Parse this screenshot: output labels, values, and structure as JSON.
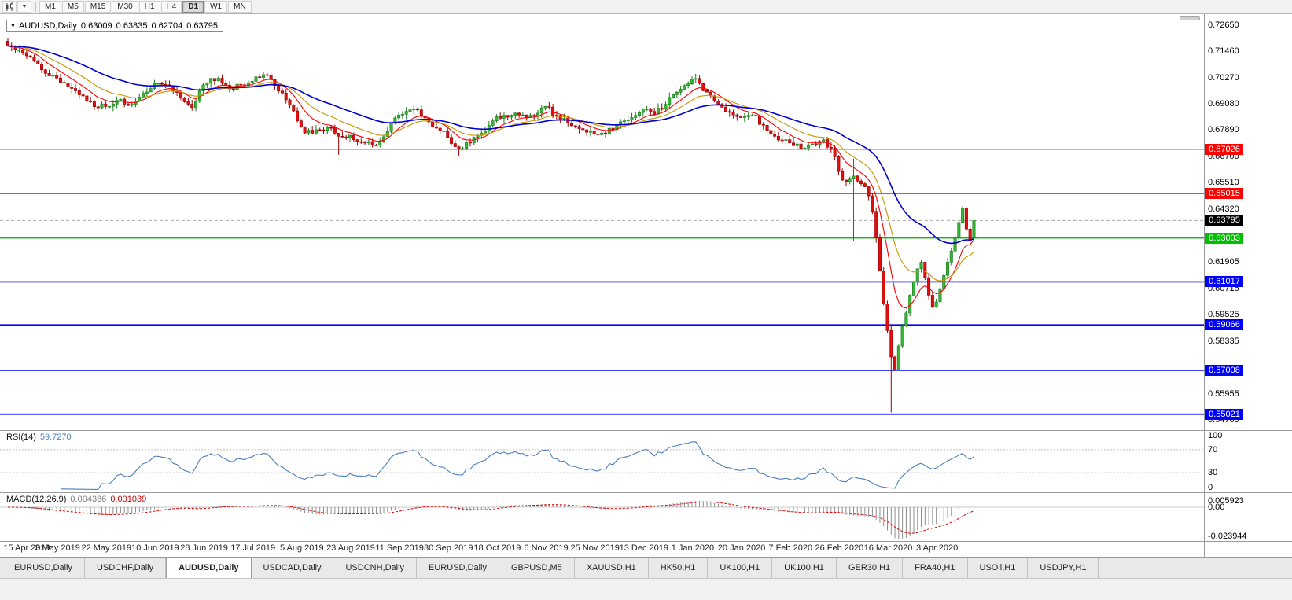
{
  "toolbar": {
    "timeframes": [
      "M1",
      "M5",
      "M15",
      "M30",
      "H1",
      "H4",
      "D1",
      "W1",
      "MN"
    ],
    "active_timeframe": "D1"
  },
  "title": {
    "symbol": "AUDUSD,Daily",
    "open": "0.63009",
    "high": "0.63835",
    "low": "0.62704",
    "close": "0.63795"
  },
  "price_axis": {
    "ticks": [
      "0.72650",
      "0.71460",
      "0.70270",
      "0.69080",
      "0.67890",
      "0.66700",
      "0.65510",
      "0.64320",
      "0.61905",
      "0.60715",
      "0.59525",
      "0.58335",
      "0.55955",
      "0.54765"
    ]
  },
  "horizontal_lines": [
    {
      "price": 0.67026,
      "label": "0.67026",
      "color": "#FF0000",
      "width": 1.2
    },
    {
      "price": 0.65015,
      "label": "0.65015",
      "color": "#FF0000",
      "width": 1.2
    },
    {
      "price": 0.63003,
      "label": "0.63003",
      "color": "#00BE00",
      "width": 1.4
    },
    {
      "price": 0.61017,
      "label": "0.61017",
      "color": "#0000FF",
      "width": 1.6
    },
    {
      "price": 0.59066,
      "label": "0.59066",
      "color": "#0000FF",
      "width": 1.6
    },
    {
      "price": 0.57008,
      "label": "0.57008",
      "color": "#0000FF",
      "width": 1.6
    },
    {
      "price": 0.55021,
      "label": "0.55021",
      "color": "#0000FF",
      "width": 1.8
    }
  ],
  "current_price": {
    "label": "0.63795",
    "value": 0.63795,
    "bg": "#000000"
  },
  "date_axis": [
    "15 Apr 2019",
    "3 May 2019",
    "22 May 2019",
    "10 Jun 2019",
    "28 Jun 2019",
    "17 Jul 2019",
    "5 Aug 2019",
    "23 Aug 2019",
    "11 Sep 2019",
    "30 Sep 2019",
    "18 Oct 2019",
    "6 Nov 2019",
    "25 Nov 2019",
    "13 Dec 2019",
    "1 Jan 2020",
    "20 Jan 2020",
    "7 Feb 2020",
    "26 Feb 2020",
    "16 Mar 2020",
    "3 Apr 2020"
  ],
  "rsi": {
    "name": "RSI(14)",
    "value": "59.7270",
    "levels": [
      70,
      30
    ],
    "axis_labels": [
      100,
      70,
      30,
      0
    ],
    "line_color": "#4a7ebb"
  },
  "macd": {
    "name": "MACD(12,26,9)",
    "main_value": "0.004386",
    "signal_value": "0.001039",
    "axis_top_label": "0.005923",
    "axis_zero_label": "0.00",
    "axis_bottom_label": "-0.023944",
    "histogram_color": "#8c8c8c",
    "signal_color": "#e00000"
  },
  "tabs": {
    "items": [
      "EURUSD,Daily",
      "USDCHF,Daily",
      "AUDUSD,Daily",
      "USDCAD,Daily",
      "USDCNH,Daily",
      "EURUSD,Daily",
      "GBPUSD,M5",
      "XAUUSD,H1",
      "HK50,H1",
      "UK100,H1",
      "UK100,H1",
      "GER30,H1",
      "FRA40,H1",
      "USOil,H1",
      "USDJPY,H1"
    ],
    "active_index": 2
  },
  "chart_data": {
    "type": "candlestick",
    "symbol": "AUDUSD",
    "timeframe": "Daily",
    "x_range": [
      "15 Apr 2019",
      "17 Apr 2020"
    ],
    "y_range": [
      0.543,
      0.73
    ],
    "candle_count": 258,
    "last_candle_ohlc": [
      0.63009,
      0.63835,
      0.62704,
      0.63795
    ],
    "up_color": "#33B833",
    "down_color": "#E01010",
    "up_stroke": "#1E7A1E",
    "down_stroke": "#990000",
    "price_path_anchors": [
      [
        0,
        0.717
      ],
      [
        3,
        0.7152
      ],
      [
        6,
        0.712
      ],
      [
        10,
        0.7046
      ],
      [
        13,
        0.7025
      ],
      [
        16,
        0.6985
      ],
      [
        20,
        0.6944
      ],
      [
        24,
        0.689
      ],
      [
        26,
        0.6896
      ],
      [
        29,
        0.6924
      ],
      [
        32,
        0.6901
      ],
      [
        36,
        0.6956
      ],
      [
        39,
        0.7
      ],
      [
        42,
        0.6994
      ],
      [
        46,
        0.6934
      ],
      [
        49,
        0.6891
      ],
      [
        52,
        0.6994
      ],
      [
        56,
        0.7024
      ],
      [
        59,
        0.6976
      ],
      [
        62,
        0.6994
      ],
      [
        65,
        0.701
      ],
      [
        68,
        0.704
      ],
      [
        71,
        0.6991
      ],
      [
        74,
        0.6926
      ],
      [
        77,
        0.6831
      ],
      [
        79,
        0.6776
      ],
      [
        82,
        0.6791
      ],
      [
        85,
        0.6801
      ],
      [
        88,
        0.6761
      ],
      [
        91,
        0.6766
      ],
      [
        94,
        0.6736
      ],
      [
        97,
        0.6721
      ],
      [
        100,
        0.6759
      ],
      [
        103,
        0.6844
      ],
      [
        106,
        0.6874
      ],
      [
        109,
        0.6881
      ],
      [
        112,
        0.6826
      ],
      [
        115,
        0.6786
      ],
      [
        117,
        0.6756
      ],
      [
        120,
        0.6706
      ],
      [
        123,
        0.6731
      ],
      [
        126,
        0.6776
      ],
      [
        129,
        0.6831
      ],
      [
        132,
        0.6856
      ],
      [
        135,
        0.6866
      ],
      [
        138,
        0.6846
      ],
      [
        141,
        0.6866
      ],
      [
        143,
        0.6896
      ],
      [
        146,
        0.6856
      ],
      [
        149,
        0.6821
      ],
      [
        152,
        0.6796
      ],
      [
        155,
        0.6786
      ],
      [
        158,
        0.6776
      ],
      [
        161,
        0.6791
      ],
      [
        164,
        0.6831
      ],
      [
        167,
        0.6856
      ],
      [
        169,
        0.6881
      ],
      [
        172,
        0.6861
      ],
      [
        175,
        0.6906
      ],
      [
        178,
        0.6961
      ],
      [
        180,
        0.6991
      ],
      [
        182,
        0.7021
      ],
      [
        184,
        0.7001
      ],
      [
        186,
        0.6961
      ],
      [
        189,
        0.6906
      ],
      [
        192,
        0.6871
      ],
      [
        195,
        0.6846
      ],
      [
        198,
        0.6856
      ],
      [
        201,
        0.6811
      ],
      [
        204,
        0.6761
      ],
      [
        208,
        0.6731
      ],
      [
        211,
        0.6706
      ],
      [
        214,
        0.6726
      ],
      [
        217,
        0.6746
      ],
      [
        219,
        0.6706
      ],
      [
        221,
        0.6601
      ],
      [
        223,
        0.6556
      ],
      [
        225,
        0.6581
      ],
      [
        227,
        0.6546
      ],
      [
        229,
        0.6491
      ],
      [
        230,
        0.6421
      ],
      [
        231,
        0.6301
      ],
      [
        232,
        0.6151
      ],
      [
        233,
        0.6001
      ],
      [
        234,
        0.5881
      ],
      [
        235,
        0.5761
      ],
      [
        236,
        0.5701
      ],
      [
        237,
        0.5811
      ],
      [
        238,
        0.5901
      ],
      [
        239,
        0.5961
      ],
      [
        240,
        0.6041
      ],
      [
        241,
        0.6101
      ],
      [
        242,
        0.6161
      ],
      [
        243,
        0.6191
      ],
      [
        244,
        0.6121
      ],
      [
        245,
        0.6041
      ],
      [
        246,
        0.5986
      ],
      [
        247,
        0.6011
      ],
      [
        248,
        0.6071
      ],
      [
        249,
        0.6131
      ],
      [
        250,
        0.6191
      ],
      [
        251,
        0.6241
      ],
      [
        252,
        0.6301
      ],
      [
        253,
        0.6371
      ],
      [
        254,
        0.6436
      ],
      [
        255,
        0.6341
      ],
      [
        256,
        0.6286
      ],
      [
        257,
        0.63795
      ]
    ],
    "special_candles": {
      "88": {
        "l": 0.6677
      },
      "120": {
        "l": 0.6671
      },
      "182": {
        "h": 0.7032
      },
      "225": {
        "h": 0.666,
        "l": 0.6285
      },
      "235": {
        "l": 0.551
      },
      "254": {
        "h": 0.6445
      },
      "257": {
        "o": 0.63009,
        "h": 0.63835,
        "l": 0.62704,
        "c": 0.63795
      }
    },
    "moving_averages": [
      {
        "period": 9,
        "color": "#FF0000",
        "width": 1.1
      },
      {
        "period": 18,
        "color": "#C89600",
        "width": 1.1
      },
      {
        "period": 40,
        "color": "#0000D2",
        "width": 1.6
      }
    ]
  }
}
